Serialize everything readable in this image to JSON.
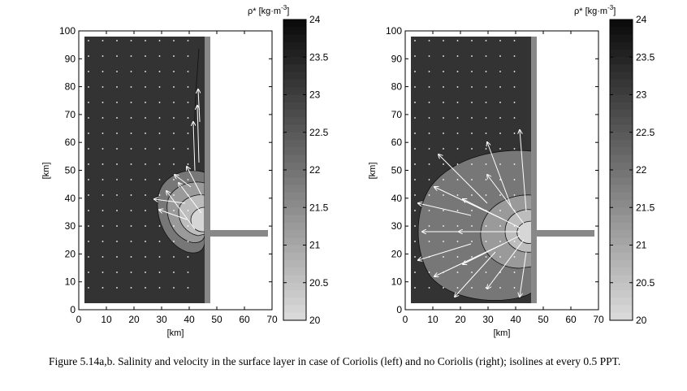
{
  "colorbar_title": "ρ* [kg·m",
  "colorbar_title_sup": "-3",
  "colorbar_title_end": "]",
  "colorbar_ticks": [
    "24",
    "23.5",
    "23",
    "22.5",
    "22",
    "21.5",
    "21",
    "20.5",
    "20"
  ],
  "caption": "Figure 5.14a,b. Salinity and velocity in the surface layer in case of Coriolis (left) and no Coriolis (right); isolines at every 0.5 PPT.",
  "chart_data": [
    {
      "type": "heatmap",
      "panel": "a",
      "xlabel": "[km]",
      "ylabel": "[km]",
      "xlim": [
        0,
        70
      ],
      "ylim": [
        0,
        100
      ],
      "xticks": [
        0,
        10,
        20,
        30,
        40,
        50,
        60,
        70
      ],
      "yticks": [
        0,
        10,
        20,
        30,
        40,
        50,
        60,
        70,
        80,
        90,
        100
      ],
      "colorbar_range": [
        20,
        24
      ],
      "domain_x": [
        2,
        45
      ],
      "domain_y": [
        2,
        98
      ],
      "coast_x": [
        45,
        47
      ],
      "outlet": {
        "x": [
          47,
          68
        ],
        "y": [
          26,
          28
        ]
      },
      "plume_density_levels": [
        22.5,
        22,
        21.5,
        21
      ],
      "ambient_density": 23.8
    },
    {
      "type": "heatmap",
      "panel": "b",
      "xlabel": "[km]",
      "ylabel": "[km]",
      "xlim": [
        0,
        70
      ],
      "ylim": [
        0,
        100
      ],
      "xticks": [
        0,
        10,
        20,
        30,
        40,
        50,
        60,
        70
      ],
      "yticks": [
        0,
        10,
        20,
        30,
        40,
        50,
        60,
        70,
        80,
        90,
        100
      ],
      "colorbar_range": [
        20,
        24
      ],
      "domain_x": [
        2,
        45
      ],
      "domain_y": [
        2,
        98
      ],
      "coast_x": [
        45,
        47
      ],
      "outlet": {
        "x": [
          47,
          68
        ],
        "y": [
          26,
          28
        ]
      },
      "plume_density_levels": [
        22.5,
        21.5,
        21,
        20.5
      ],
      "ambient_density": 23.8
    }
  ]
}
